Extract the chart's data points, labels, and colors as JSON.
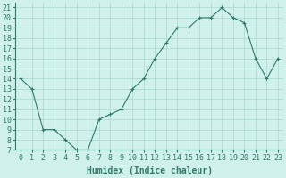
{
  "x": [
    0,
    1,
    2,
    3,
    4,
    5,
    6,
    7,
    8,
    9,
    10,
    11,
    12,
    13,
    14,
    15,
    16,
    17,
    18,
    19,
    20,
    21,
    22,
    23
  ],
  "y": [
    14,
    13,
    9,
    9,
    8,
    7,
    7,
    10,
    10.5,
    11,
    13,
    14,
    16,
    17.5,
    19,
    19,
    20,
    20,
    21,
    20,
    19.5,
    16,
    14,
    16
  ],
  "line_color": "#2d7a6a",
  "marker": "+",
  "marker_size": 3,
  "bg_color": "#cff0eb",
  "grid_color": "#a8d8d0",
  "xlabel": "Humidex (Indice chaleur)",
  "xlabel_fontsize": 7,
  "tick_fontsize": 6,
  "ylim": [
    7,
    21.5
  ],
  "xlim": [
    -0.5,
    23.5
  ],
  "yticks": [
    7,
    8,
    9,
    10,
    11,
    12,
    13,
    14,
    15,
    16,
    17,
    18,
    19,
    20,
    21
  ],
  "xticks": [
    0,
    1,
    2,
    3,
    4,
    5,
    6,
    7,
    8,
    9,
    10,
    11,
    12,
    13,
    14,
    15,
    16,
    17,
    18,
    19,
    20,
    21,
    22,
    23
  ]
}
